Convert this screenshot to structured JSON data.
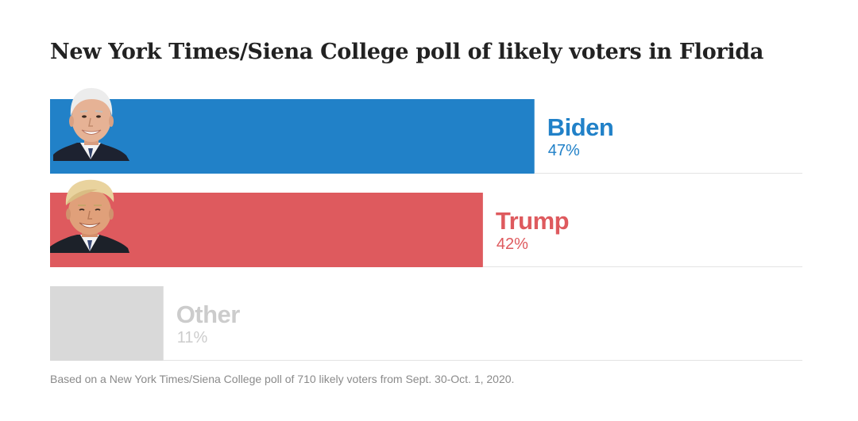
{
  "title": "New York Times/Siena College poll of likely voters in Florida",
  "footnote": "Based on a New York Times/Siena College poll of 710 likely voters from Sept. 30-Oct. 1, 2020.",
  "chart_data": {
    "type": "bar",
    "orientation": "horizontal",
    "title": "New York Times/Siena College poll of likely voters in Florida",
    "xlabel": "",
    "ylabel": "",
    "xlim": [
      0,
      73
    ],
    "grid": false,
    "legend": "none",
    "categories": [
      "Biden",
      "Trump",
      "Other"
    ],
    "values": [
      47,
      42,
      11
    ],
    "value_labels": [
      "47%",
      "42%",
      "11%"
    ],
    "colors": [
      "#2181c8",
      "#de5a5e",
      "#d9d9d9"
    ],
    "label_colors": [
      "#2181c8",
      "#de5a5e",
      "#cccccc"
    ],
    "portraits": [
      "biden-portrait",
      "trump-portrait",
      null
    ]
  }
}
